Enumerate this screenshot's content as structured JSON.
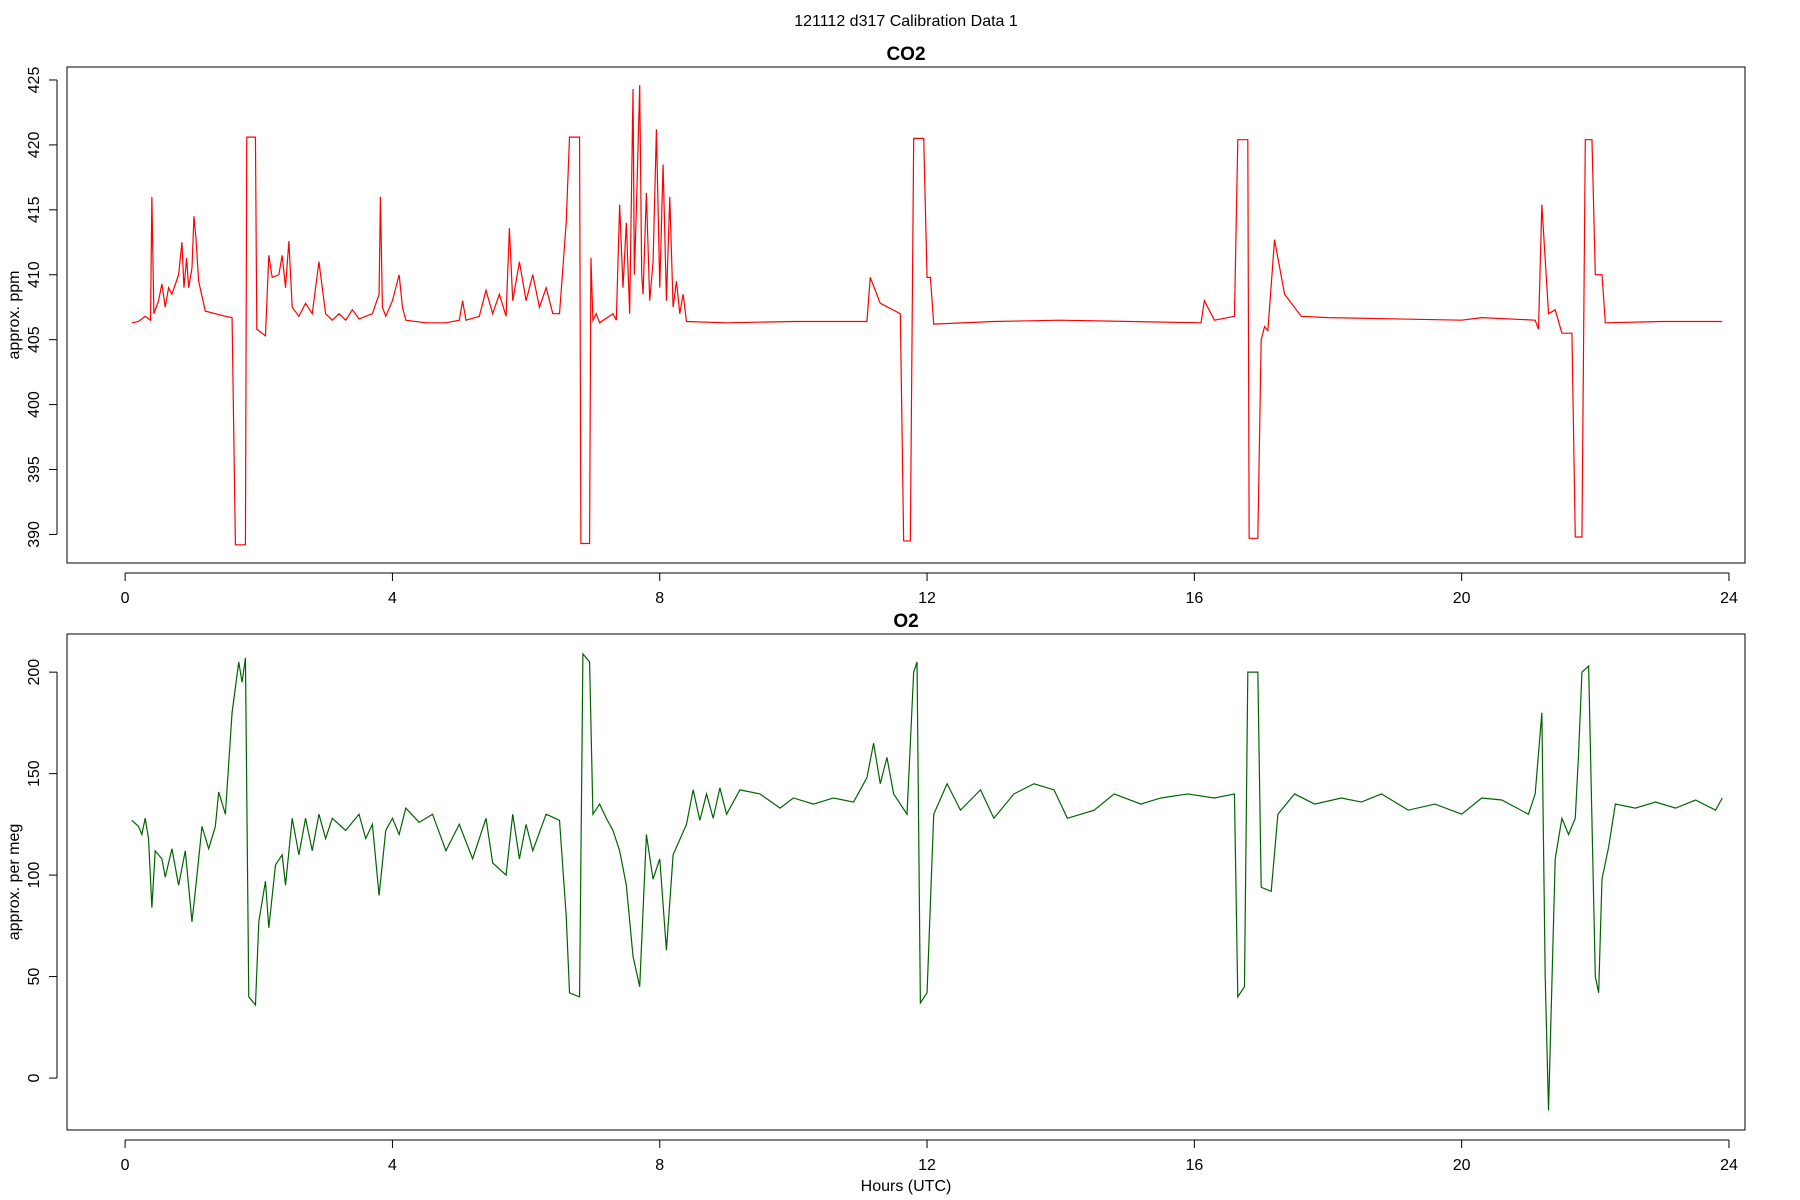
{
  "title": "121112   d317   Calibration Data 1",
  "chart_data": [
    {
      "type": "line",
      "title": "CO2",
      "ylabel": "approx. ppm",
      "xlim": [
        -0.87,
        24.24
      ],
      "ylim": [
        387.8,
        426
      ],
      "xticks": [
        0,
        4,
        8,
        12,
        16,
        20,
        24
      ],
      "yticks": [
        390,
        395,
        400,
        405,
        410,
        415,
        420,
        425
      ],
      "x": [
        0.1,
        0.2,
        0.3,
        0.38,
        0.4,
        0.43,
        0.5,
        0.55,
        0.6,
        0.65,
        0.7,
        0.8,
        0.85,
        0.88,
        0.92,
        0.95,
        1.0,
        1.03,
        1.06,
        1.1,
        1.2,
        1.5,
        1.6,
        1.65,
        1.8,
        1.82,
        1.95,
        1.97,
        2.1,
        2.15,
        2.2,
        2.3,
        2.35,
        2.4,
        2.45,
        2.5,
        2.6,
        2.7,
        2.8,
        2.9,
        3.0,
        3.1,
        3.2,
        3.3,
        3.4,
        3.5,
        3.7,
        3.8,
        3.82,
        3.85,
        3.9,
        4.0,
        4.1,
        4.15,
        4.2,
        4.5,
        4.8,
        5.0,
        5.05,
        5.1,
        5.3,
        5.4,
        5.5,
        5.6,
        5.7,
        5.75,
        5.8,
        5.9,
        6.0,
        6.1,
        6.2,
        6.3,
        6.4,
        6.5,
        6.6,
        6.65,
        6.8,
        6.82,
        6.95,
        6.97,
        7.0,
        7.05,
        7.1,
        7.3,
        7.35,
        7.4,
        7.45,
        7.5,
        7.55,
        7.6,
        7.62,
        7.65,
        7.7,
        7.73,
        7.75,
        7.8,
        7.85,
        7.9,
        7.95,
        8.0,
        8.05,
        8.1,
        8.15,
        8.2,
        8.25,
        8.3,
        8.35,
        8.4,
        9,
        10,
        11.1,
        11.15,
        11.3,
        11.6,
        11.65,
        11.75,
        11.8,
        11.95,
        12.0,
        12.05,
        12.1,
        13,
        14,
        16.1,
        16.15,
        16.3,
        16.6,
        16.65,
        16.8,
        16.82,
        16.95,
        17.0,
        17.05,
        17.1,
        17.2,
        17.35,
        17.6,
        18,
        20,
        20.3,
        21.1,
        21.15,
        21.2,
        21.3,
        21.4,
        21.5,
        21.65,
        21.7,
        21.8,
        21.85,
        21.95,
        22.0,
        22.1,
        22.15,
        23,
        23.9
      ],
      "series": [
        {
          "color": "#ff0000",
          "values": [
            406.3,
            406.4,
            406.8,
            406.5,
            416,
            407,
            408,
            409.3,
            407.5,
            409,
            408.5,
            410,
            412.5,
            409,
            411.3,
            409,
            410.5,
            414.5,
            412.8,
            409.5,
            407.2,
            406.8,
            406.7,
            389.2,
            389.2,
            420.6,
            420.6,
            405.8,
            405.3,
            411.5,
            409.8,
            410,
            411.5,
            409,
            412.6,
            407.5,
            406.8,
            407.8,
            407,
            411,
            407,
            406.5,
            407,
            406.5,
            407.3,
            406.6,
            407,
            408.5,
            416,
            407.5,
            406.8,
            408,
            410,
            407.5,
            406.5,
            406.3,
            406.3,
            406.5,
            408,
            406.5,
            406.8,
            408.8,
            407,
            408.5,
            406.8,
            413.6,
            408,
            411,
            408,
            410,
            407.5,
            409,
            407,
            407,
            414,
            420.6,
            420.6,
            389.3,
            389.3,
            411.3,
            406.5,
            407,
            406.3,
            407,
            406.5,
            415.4,
            409,
            414,
            407,
            424.3,
            410,
            415,
            424.6,
            410,
            408.5,
            416.3,
            408,
            411,
            421.2,
            409,
            418.5,
            408,
            416,
            407.5,
            409.5,
            407,
            408.5,
            406.4,
            406.3,
            406.4,
            406.4,
            409.8,
            407.8,
            407,
            389.5,
            389.5,
            420.5,
            420.5,
            409.8,
            409.8,
            406.2,
            406.4,
            406.5,
            406.3,
            408,
            406.5,
            406.8,
            420.4,
            420.4,
            389.7,
            389.7,
            405,
            406,
            405.7,
            412.7,
            408.5,
            406.8,
            406.7,
            406.5,
            406.7,
            406.5,
            405.8,
            415.4,
            407,
            407.3,
            405.5,
            405.5,
            389.8,
            389.8,
            420.4,
            420.4,
            410,
            410,
            406.3,
            406.4,
            406.4
          ]
        }
      ]
    },
    {
      "type": "line",
      "title": "O2",
      "ylabel": "approx. per meg",
      "xlabel": "Hours (UTC)",
      "xlim": [
        -0.87,
        24.24
      ],
      "ylim": [
        -25.6,
        218.8
      ],
      "xticks": [
        0,
        4,
        8,
        12,
        16,
        20,
        24
      ],
      "yticks": [
        0,
        50,
        100,
        150,
        200
      ],
      "x": [
        0.1,
        0.2,
        0.25,
        0.3,
        0.35,
        0.4,
        0.45,
        0.55,
        0.6,
        0.7,
        0.8,
        0.9,
        1.0,
        1.05,
        1.15,
        1.25,
        1.35,
        1.4,
        1.5,
        1.6,
        1.7,
        1.75,
        1.8,
        1.85,
        1.95,
        2.0,
        2.1,
        2.15,
        2.25,
        2.35,
        2.4,
        2.5,
        2.6,
        2.7,
        2.8,
        2.9,
        3.0,
        3.1,
        3.3,
        3.5,
        3.6,
        3.7,
        3.8,
        3.9,
        4.0,
        4.1,
        4.2,
        4.4,
        4.6,
        4.8,
        5.0,
        5.2,
        5.4,
        5.5,
        5.7,
        5.8,
        5.9,
        6.0,
        6.1,
        6.3,
        6.5,
        6.6,
        6.65,
        6.8,
        6.85,
        6.95,
        7.0,
        7.1,
        7.2,
        7.3,
        7.4,
        7.5,
        7.6,
        7.7,
        7.8,
        7.9,
        8.0,
        8.1,
        8.2,
        8.4,
        8.5,
        8.6,
        8.7,
        8.8,
        8.9,
        9,
        9.2,
        9.5,
        9.8,
        10,
        10.3,
        10.6,
        10.9,
        11.1,
        11.2,
        11.3,
        11.4,
        11.5,
        11.7,
        11.8,
        11.85,
        11.9,
        12.0,
        12.1,
        12.3,
        12.5,
        12.8,
        13,
        13.3,
        13.6,
        13.9,
        14.1,
        14.5,
        14.8,
        15.2,
        15.5,
        15.9,
        16.3,
        16.6,
        16.65,
        16.75,
        16.8,
        16.95,
        17.0,
        17.15,
        17.25,
        17.5,
        17.8,
        18.2,
        18.5,
        18.8,
        19.2,
        19.6,
        20.0,
        20.3,
        20.6,
        21.0,
        21.1,
        21.2,
        21.25,
        21.3,
        21.4,
        21.5,
        21.6,
        21.7,
        21.75,
        21.8,
        21.9,
        22.0,
        22.05,
        22.1,
        22.2,
        22.3,
        22.6,
        22.9,
        23.2,
        23.5,
        23.8,
        23.9
      ],
      "series": [
        {
          "color": "#006400",
          "values": [
            127,
            124,
            120,
            128,
            118,
            84,
            112,
            108,
            99,
            113,
            95,
            112,
            77,
            92,
            124,
            113,
            124,
            141,
            130,
            180,
            205,
            195,
            207,
            40,
            36,
            77,
            97,
            74,
            105,
            110,
            95,
            128,
            110,
            128,
            112,
            130,
            118,
            128,
            122,
            130,
            118,
            125,
            90,
            122,
            128,
            120,
            133,
            126,
            130,
            112,
            125,
            108,
            128,
            106,
            100,
            130,
            108,
            125,
            112,
            130,
            127,
            80,
            42,
            40,
            209,
            205,
            130,
            135,
            128,
            122,
            112,
            95,
            60,
            45,
            120,
            98,
            108,
            63,
            110,
            125,
            142,
            127,
            140,
            128,
            143,
            130,
            142,
            140,
            133,
            138,
            135,
            138,
            136,
            148,
            165,
            145,
            158,
            140,
            130,
            200,
            205,
            37,
            42,
            130,
            145,
            132,
            142,
            128,
            140,
            145,
            142,
            128,
            132,
            140,
            135,
            138,
            140,
            138,
            140,
            40,
            45,
            200,
            200,
            94,
            92,
            130,
            140,
            135,
            138,
            136,
            140,
            132,
            135,
            130,
            138,
            137,
            130,
            140,
            180,
            50,
            -16,
            108,
            128,
            120,
            128,
            160,
            200,
            203,
            50,
            42,
            98,
            114,
            135,
            133,
            136,
            133,
            137,
            132,
            138
          ]
        }
      ]
    }
  ]
}
